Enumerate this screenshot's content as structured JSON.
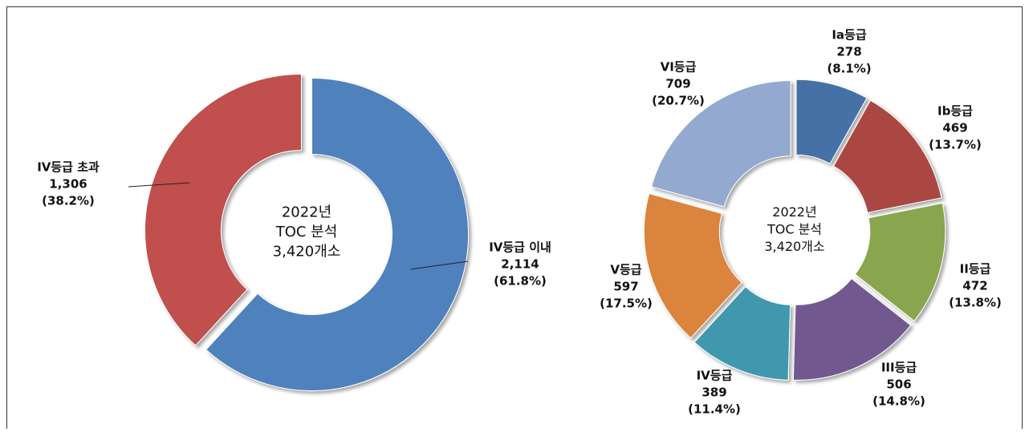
{
  "chart_data": [
    {
      "type": "donut",
      "categories": [
        "IV등급 이내",
        "IV등급 초과"
      ],
      "values": [
        2114,
        1306
      ],
      "value_labels": [
        "2,114",
        "1,306"
      ],
      "percent_labels": [
        "(61.8%)",
        "(38.2%)"
      ],
      "colors": [
        "#4f81bd",
        "#c0504d"
      ],
      "center_text": [
        "2022년",
        "TOC 분석",
        "3,420개소"
      ]
    },
    {
      "type": "donut",
      "categories": [
        "Ia등급",
        "Ib등급",
        "II등급",
        "III등급",
        "IV등급",
        "V등급",
        "VI등급"
      ],
      "values": [
        278,
        469,
        472,
        506,
        389,
        597,
        709
      ],
      "percent_labels": [
        "(8.1%)",
        "(13.7%)",
        "(13.8%)",
        "(14.8%)",
        "(11.4%)",
        "(17.5%)",
        "(20.7%)"
      ],
      "colors": [
        "#4571a6",
        "#aa4643",
        "#89a54e",
        "#71588f",
        "#4198af",
        "#db843d",
        "#93a9cf"
      ],
      "center_text": [
        "2022년",
        "TOC 분석",
        "3,420개소"
      ]
    }
  ]
}
